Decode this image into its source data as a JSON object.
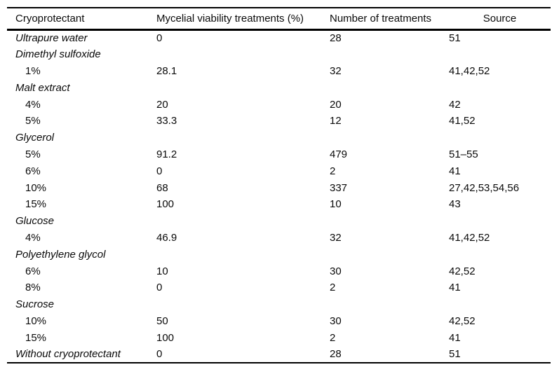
{
  "table": {
    "columns": {
      "cryoprotectant": "Cryoprotectant",
      "viability": "Mycelial viability treatments (%)",
      "treatments": "Number of treatments",
      "source": "Source"
    },
    "rows": [
      {
        "label": "Ultrapure water",
        "italic": true,
        "indent": false,
        "viability": "0",
        "treatments": "28",
        "source": "51"
      },
      {
        "label": "Dimethyl sulfoxide",
        "italic": true,
        "indent": false,
        "viability": "",
        "treatments": "",
        "source": ""
      },
      {
        "label": "1%",
        "italic": false,
        "indent": true,
        "viability": "28.1",
        "treatments": "32",
        "source": "41,42,52"
      },
      {
        "label": "Malt extract",
        "italic": true,
        "indent": false,
        "viability": "",
        "treatments": "",
        "source": ""
      },
      {
        "label": "4%",
        "italic": false,
        "indent": true,
        "viability": "20",
        "treatments": "20",
        "source": "42"
      },
      {
        "label": "5%",
        "italic": false,
        "indent": true,
        "viability": "33.3",
        "treatments": "12",
        "source": "41,52"
      },
      {
        "label": "Glycerol",
        "italic": true,
        "indent": false,
        "viability": "",
        "treatments": "",
        "source": ""
      },
      {
        "label": "5%",
        "italic": false,
        "indent": true,
        "viability": "91.2",
        "treatments": "479",
        "source": "51–55"
      },
      {
        "label": "6%",
        "italic": false,
        "indent": true,
        "viability": "0",
        "treatments": "2",
        "source": "41"
      },
      {
        "label": "10%",
        "italic": false,
        "indent": true,
        "viability": "68",
        "treatments": "337",
        "source": "27,42,53,54,56"
      },
      {
        "label": "15%",
        "italic": false,
        "indent": true,
        "viability": "100",
        "treatments": "10",
        "source": "43"
      },
      {
        "label": "Glucose",
        "italic": true,
        "indent": false,
        "viability": "",
        "treatments": "",
        "source": ""
      },
      {
        "label": "4%",
        "italic": false,
        "indent": true,
        "viability": "46.9",
        "treatments": "32",
        "source": "41,42,52"
      },
      {
        "label": "Polyethylene glycol",
        "italic": true,
        "indent": false,
        "viability": "",
        "treatments": "",
        "source": ""
      },
      {
        "label": "6%",
        "italic": false,
        "indent": true,
        "viability": "10",
        "treatments": "30",
        "source": "42,52"
      },
      {
        "label": "8%",
        "italic": false,
        "indent": true,
        "viability": "0",
        "treatments": "2",
        "source": "41"
      },
      {
        "label": "Sucrose",
        "italic": true,
        "indent": false,
        "viability": "",
        "treatments": "",
        "source": ""
      },
      {
        "label": "10%",
        "italic": false,
        "indent": true,
        "viability": "50",
        "treatments": "30",
        "source": "42,52"
      },
      {
        "label": "15%",
        "italic": false,
        "indent": true,
        "viability": "100",
        "treatments": "2",
        "source": "41"
      },
      {
        "label": "Without cryoprotectant",
        "italic": true,
        "indent": false,
        "viability": "0",
        "treatments": "28",
        "source": "51"
      }
    ]
  }
}
